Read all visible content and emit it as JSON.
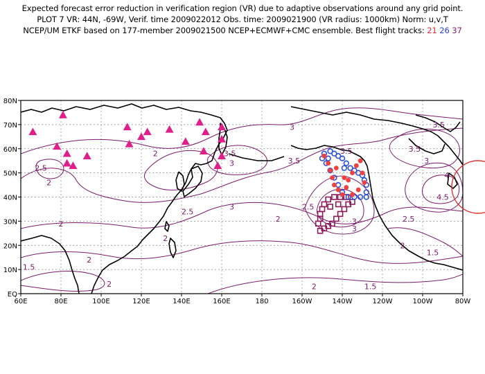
{
  "header": {
    "line1": "Expected forecast error reduction in verification region (VR) due to adaptive observations around any grid point.",
    "line2": "PLOT 7 VR: 44N, -69W, Verif. time 2009022012 Obs. time: 2009021900 (VR radius: 1000km) Norm: u,v,T",
    "line3_prefix": "NCEP/UM ETKF based on 177-member 2009021500 NCEP+ECMWF+CMC ensemble. Best flight tracks:",
    "track_a": "21",
    "track_b": "26",
    "track_c": "37"
  },
  "colors": {
    "contour": "#7a1a6a",
    "triangle": "#e0208a",
    "track_a": "#f04040",
    "track_b": "#2a4fd8",
    "track_c": "#8a1a5a",
    "coast": "#000000",
    "vr_circle": "#e03030"
  },
  "axes": {
    "x_ticks": [
      "60E",
      "80E",
      "100E",
      "120E",
      "140E",
      "160E",
      "180",
      "160W",
      "140W",
      "120W",
      "100W",
      "80W"
    ],
    "y_ticks": [
      "EQ",
      "10N",
      "20N",
      "30N",
      "40N",
      "50N",
      "60N",
      "70N",
      "80N"
    ],
    "lon_range": [
      60,
      280
    ],
    "lat_range": [
      0,
      80
    ]
  },
  "contour_labels": [
    {
      "text": "3",
      "lon": 195,
      "lat": 69
    },
    {
      "text": "3.5",
      "lon": 268,
      "lat": 70
    },
    {
      "text": "3.5",
      "lon": 256,
      "lat": 60
    },
    {
      "text": "2",
      "lon": 127,
      "lat": 58
    },
    {
      "text": "2.5",
      "lon": 70,
      "lat": 52
    },
    {
      "text": "2",
      "lon": 74,
      "lat": 46
    },
    {
      "text": "3.5",
      "lon": 164,
      "lat": 58
    },
    {
      "text": "3",
      "lon": 165,
      "lat": 54
    },
    {
      "text": "3.5",
      "lon": 196,
      "lat": 55
    },
    {
      "text": "3.5",
      "lon": 222,
      "lat": 59
    },
    {
      "text": "3",
      "lon": 262,
      "lat": 55
    },
    {
      "text": "4",
      "lon": 272,
      "lat": 49
    },
    {
      "text": "4.5",
      "lon": 270,
      "lat": 40
    },
    {
      "text": "2.5",
      "lon": 143,
      "lat": 34
    },
    {
      "text": "3",
      "lon": 165,
      "lat": 36
    },
    {
      "text": "2.5",
      "lon": 203,
      "lat": 36
    },
    {
      "text": "3",
      "lon": 226,
      "lat": 30
    },
    {
      "text": "3",
      "lon": 226,
      "lat": 27
    },
    {
      "text": "2.5",
      "lon": 253,
      "lat": 31
    },
    {
      "text": "2",
      "lon": 188,
      "lat": 31
    },
    {
      "text": "2",
      "lon": 80,
      "lat": 29
    },
    {
      "text": "2",
      "lon": 132,
      "lat": 23
    },
    {
      "text": "2",
      "lon": 250,
      "lat": 20
    },
    {
      "text": "1.5",
      "lon": 265,
      "lat": 17
    },
    {
      "text": "2",
      "lon": 94,
      "lat": 14
    },
    {
      "text": "1.5",
      "lon": 64,
      "lat": 11
    },
    {
      "text": "2",
      "lon": 104,
      "lat": 4
    },
    {
      "text": "2",
      "lon": 206,
      "lat": 3
    },
    {
      "text": "1.5",
      "lon": 234,
      "lat": 3
    }
  ],
  "triangles": [
    {
      "lon": 66,
      "lat": 67
    },
    {
      "lon": 81,
      "lat": 74
    },
    {
      "lon": 78,
      "lat": 61
    },
    {
      "lon": 83,
      "lat": 58
    },
    {
      "lon": 83,
      "lat": 54
    },
    {
      "lon": 86,
      "lat": 53
    },
    {
      "lon": 93,
      "lat": 57
    },
    {
      "lon": 113,
      "lat": 69
    },
    {
      "lon": 114,
      "lat": 62
    },
    {
      "lon": 120,
      "lat": 65
    },
    {
      "lon": 123,
      "lat": 67
    },
    {
      "lon": 134,
      "lat": 68
    },
    {
      "lon": 142,
      "lat": 63
    },
    {
      "lon": 149,
      "lat": 71
    },
    {
      "lon": 151,
      "lat": 59
    },
    {
      "lon": 152,
      "lat": 67
    },
    {
      "lon": 160,
      "lat": 69
    },
    {
      "lon": 160,
      "lat": 64
    },
    {
      "lon": 160,
      "lat": 57
    },
    {
      "lon": 158,
      "lat": 53
    }
  ],
  "track_a_points": [
    {
      "lon": 211,
      "lat": 57
    },
    {
      "lon": 213,
      "lat": 54
    },
    {
      "lon": 214,
      "lat": 51
    },
    {
      "lon": 215,
      "lat": 48
    },
    {
      "lon": 216,
      "lat": 45
    },
    {
      "lon": 218,
      "lat": 43
    },
    {
      "lon": 220,
      "lat": 41
    },
    {
      "lon": 222,
      "lat": 44
    },
    {
      "lon": 223,
      "lat": 47
    },
    {
      "lon": 225,
      "lat": 50
    },
    {
      "lon": 227,
      "lat": 53
    },
    {
      "lon": 229,
      "lat": 55
    },
    {
      "lon": 230,
      "lat": 50
    },
    {
      "lon": 231,
      "lat": 46
    },
    {
      "lon": 228,
      "lat": 43
    },
    {
      "lon": 225,
      "lat": 41
    },
    {
      "lon": 221,
      "lat": 48
    },
    {
      "lon": 217,
      "lat": 52
    }
  ],
  "track_b_points": [
    {
      "lon": 211,
      "lat": 58
    },
    {
      "lon": 214,
      "lat": 59
    },
    {
      "lon": 216,
      "lat": 58
    },
    {
      "lon": 218,
      "lat": 57
    },
    {
      "lon": 220,
      "lat": 56
    },
    {
      "lon": 222,
      "lat": 54
    },
    {
      "lon": 224,
      "lat": 52
    },
    {
      "lon": 226,
      "lat": 51
    },
    {
      "lon": 228,
      "lat": 50
    },
    {
      "lon": 230,
      "lat": 49
    },
    {
      "lon": 231,
      "lat": 47
    },
    {
      "lon": 232,
      "lat": 45
    },
    {
      "lon": 232,
      "lat": 42
    },
    {
      "lon": 232,
      "lat": 40
    },
    {
      "lon": 229,
      "lat": 40
    },
    {
      "lon": 226,
      "lat": 40
    },
    {
      "lon": 223,
      "lat": 40
    },
    {
      "lon": 220,
      "lat": 42
    },
    {
      "lon": 218,
      "lat": 45
    },
    {
      "lon": 216,
      "lat": 48
    },
    {
      "lon": 214,
      "lat": 51
    },
    {
      "lon": 212,
      "lat": 54
    },
    {
      "lon": 210,
      "lat": 56
    },
    {
      "lon": 213,
      "lat": 56
    },
    {
      "lon": 221,
      "lat": 52
    }
  ],
  "track_c_points": [
    {
      "lon": 209,
      "lat": 26
    },
    {
      "lon": 211,
      "lat": 27
    },
    {
      "lon": 213,
      "lat": 28
    },
    {
      "lon": 215,
      "lat": 29
    },
    {
      "lon": 217,
      "lat": 31
    },
    {
      "lon": 219,
      "lat": 33
    },
    {
      "lon": 221,
      "lat": 35
    },
    {
      "lon": 223,
      "lat": 37
    },
    {
      "lon": 225,
      "lat": 38
    },
    {
      "lon": 222,
      "lat": 40
    },
    {
      "lon": 219,
      "lat": 40
    },
    {
      "lon": 216,
      "lat": 40
    },
    {
      "lon": 213,
      "lat": 39
    },
    {
      "lon": 211,
      "lat": 37
    },
    {
      "lon": 210,
      "lat": 35
    },
    {
      "lon": 209,
      "lat": 33
    },
    {
      "lon": 209,
      "lat": 31
    },
    {
      "lon": 208,
      "lat": 29
    },
    {
      "lon": 218,
      "lat": 37
    },
    {
      "lon": 214,
      "lat": 36
    }
  ],
  "verification_region": {
    "lat": 44,
    "lon": 291
  }
}
